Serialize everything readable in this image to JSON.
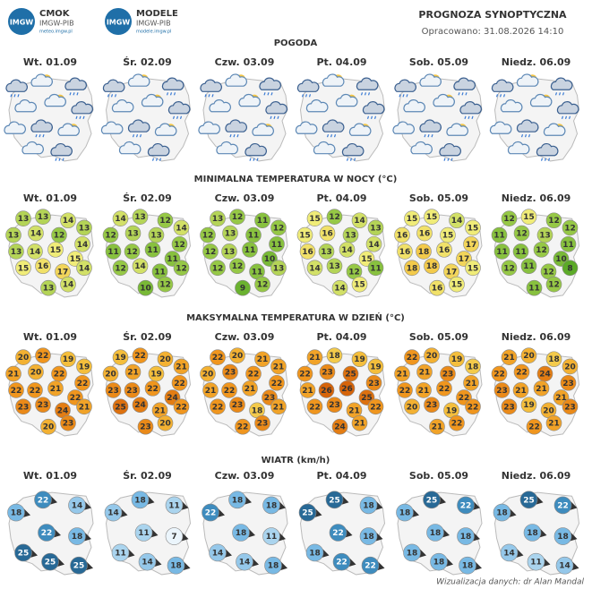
{
  "header": {
    "logos": [
      {
        "badge": "IMGW",
        "name": "CMOK",
        "org": "IMGW-PIB",
        "url": "meteo.imgw.pl"
      },
      {
        "badge": "IMGW",
        "name": "MODELE",
        "org": "IMGW-PIB",
        "url": "modele.imgw.pl"
      }
    ],
    "title": "PROGNOZA SYNOPTYCZNA",
    "prepared": "Opracowano: 31.08.2026 14:10"
  },
  "days": [
    "Wt. 01.09",
    "Śr. 02.09",
    "Czw. 03.09",
    "Pt. 04.09",
    "Sob. 05.09",
    "Niedz. 06.09"
  ],
  "weather": {
    "title": "POGODA"
  },
  "min_temp": {
    "title": "MINIMALNA TEMPERATURA W NOCY (°C)",
    "values": [
      [
        13,
        13,
        14,
        13,
        13,
        14,
        12,
        14,
        13,
        14,
        15,
        15,
        15,
        16,
        17,
        14,
        13,
        14
      ],
      [
        14,
        13,
        12,
        14,
        12,
        13,
        13,
        12,
        11,
        12,
        11,
        11,
        12,
        14,
        11,
        12,
        10,
        12
      ],
      [
        13,
        12,
        11,
        12,
        12,
        13,
        11,
        11,
        12,
        13,
        11,
        10,
        12,
        12,
        11,
        13,
        9,
        12
      ],
      [
        15,
        12,
        14,
        13,
        15,
        16,
        13,
        14,
        16,
        13,
        14,
        15,
        14,
        13,
        12,
        11,
        14,
        15
      ],
      [
        15,
        15,
        14,
        15,
        16,
        16,
        15,
        17,
        16,
        18,
        16,
        17,
        18,
        18,
        17,
        15,
        16,
        15
      ],
      [
        12,
        15,
        12,
        12,
        11,
        12,
        13,
        11,
        11,
        11,
        12,
        10,
        12,
        11,
        12,
        8,
        11,
        12
      ]
    ]
  },
  "max_temp": {
    "title": "MAKSYMALNA TEMPERATURA W DZIEŃ (°C)",
    "values": [
      [
        20,
        22,
        19,
        19,
        21,
        20,
        22,
        22,
        22,
        22,
        21,
        22,
        23,
        23,
        24,
        21,
        20,
        23
      ],
      [
        19,
        22,
        20,
        21,
        20,
        21,
        19,
        22,
        23,
        23,
        22,
        24,
        25,
        24,
        21,
        22,
        23,
        20
      ],
      [
        22,
        20,
        21,
        21,
        20,
        23,
        22,
        22,
        21,
        22,
        21,
        23,
        22,
        23,
        18,
        21,
        22,
        23
      ],
      [
        21,
        18,
        19,
        19,
        22,
        23,
        25,
        23,
        21,
        26,
        26,
        25,
        22,
        23,
        21,
        22,
        24,
        21
      ],
      [
        22,
        20,
        19,
        18,
        21,
        21,
        23,
        21,
        22,
        21,
        22,
        22,
        20,
        23,
        19,
        22,
        21,
        22
      ],
      [
        21,
        20,
        18,
        20,
        22,
        22,
        24,
        23,
        23,
        21,
        21,
        21,
        23,
        19,
        20,
        23,
        22,
        21
      ]
    ]
  },
  "wind": {
    "title": "WIATR (km/h)",
    "values": [
      [
        18,
        22,
        14,
        22,
        18,
        25,
        25,
        25
      ],
      [
        14,
        18,
        11,
        11,
        7,
        11,
        14,
        18
      ],
      [
        22,
        18,
        18,
        18,
        11,
        14,
        14,
        18
      ],
      [
        25,
        25,
        18,
        22,
        18,
        18,
        22,
        22
      ],
      [
        18,
        25,
        22,
        18,
        18,
        18,
        18,
        18
      ],
      [
        18,
        25,
        22,
        18,
        18,
        14,
        11,
        14
      ]
    ]
  },
  "footer": "Wizualizacja danych: dr Alan Mandal"
}
